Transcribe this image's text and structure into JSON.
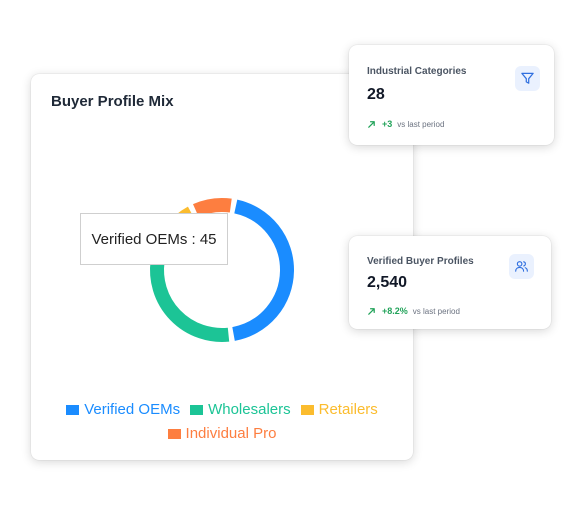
{
  "buyer_mix": {
    "title": "Buyer Profile Mix",
    "tooltip": "Verified OEMs : 45",
    "legend": [
      {
        "label": "Verified OEMs",
        "color": "#1a8cff"
      },
      {
        "label": "Wholesalers",
        "color": "#1cc496"
      },
      {
        "label": "Retailers",
        "color": "#fbbc2e"
      },
      {
        "label": "Individual Pro",
        "color": "#fd7e40"
      }
    ]
  },
  "chart_data": {
    "type": "pie",
    "title": "Buyer Profile Mix",
    "categories": [
      "Verified OEMs",
      "Wholesalers",
      "Retailers",
      "Individual Pro"
    ],
    "values": [
      45,
      30,
      15,
      10
    ],
    "colors": [
      "#1a8cff",
      "#1cc496",
      "#fbbc2e",
      "#fd7e40"
    ],
    "hole": "donut",
    "legend": "bottom"
  },
  "stats": {
    "categories": {
      "label": "Industrial Categories",
      "value": "28",
      "delta": "+3",
      "caption": "vs last period",
      "icon": "filter-icon"
    },
    "profiles": {
      "label": "Verified Buyer Profiles",
      "value": "2,540",
      "delta": "+8.2%",
      "caption": "vs last period",
      "icon": "users-icon"
    }
  }
}
